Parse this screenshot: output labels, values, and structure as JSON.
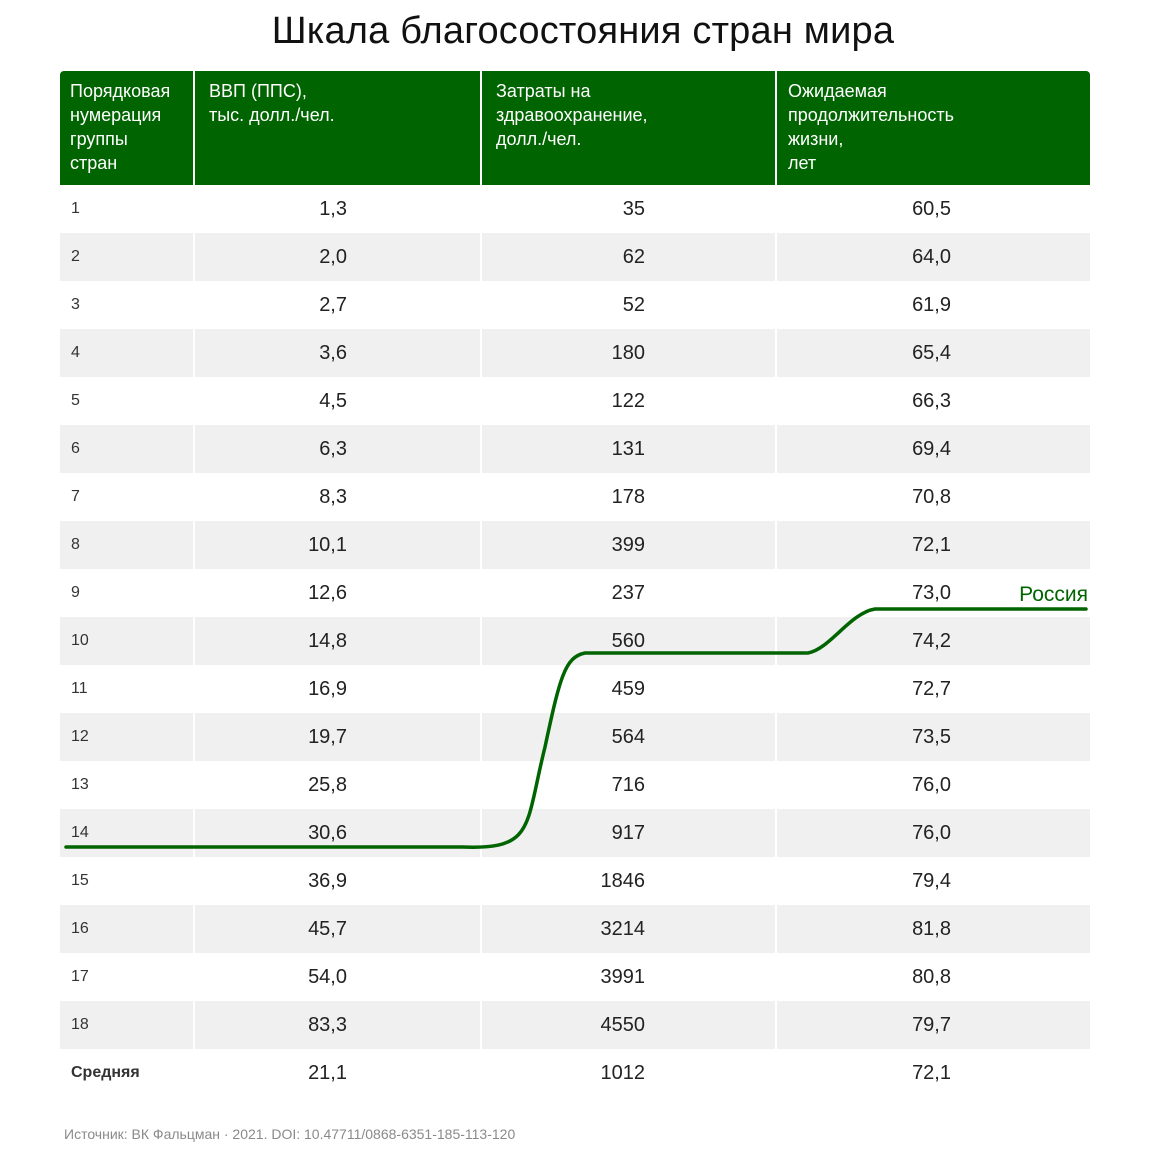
{
  "title": "Шкала благосостояния стран мира",
  "table": {
    "headers": [
      "Порядковая нумерация группы стран",
      "ВВП (ППС), тыс. долл./чел.",
      "Затраты на здравоохранение, долл./чел.",
      "Ожидаемая продолжительность жизни, лет"
    ],
    "header_lines": [
      [
        "Порядковая",
        "нумерация",
        "группы",
        "стран"
      ],
      [
        "ВВП (ППС),",
        "тыс. долл./чел."
      ],
      [
        "Затраты на",
        "здравоохранение,",
        "долл./чел."
      ],
      [
        "Ожидаемая",
        "продолжительность",
        "жизни,",
        "лет"
      ]
    ],
    "rows": [
      {
        "group": "1",
        "gdp": "1,3",
        "health": "35",
        "life": "60,5"
      },
      {
        "group": "2",
        "gdp": "2,0",
        "health": "62",
        "life": "64,0"
      },
      {
        "group": "3",
        "gdp": "2,7",
        "health": "52",
        "life": "61,9"
      },
      {
        "group": "4",
        "gdp": "3,6",
        "health": "180",
        "life": "65,4"
      },
      {
        "group": "5",
        "gdp": "4,5",
        "health": "122",
        "life": "66,3"
      },
      {
        "group": "6",
        "gdp": "6,3",
        "health": "131",
        "life": "69,4"
      },
      {
        "group": "7",
        "gdp": "8,3",
        "health": "178",
        "life": "70,8"
      },
      {
        "group": "8",
        "gdp": "10,1",
        "health": "399",
        "life": "72,1"
      },
      {
        "group": "9",
        "gdp": "12,6",
        "health": "237",
        "life": "73,0"
      },
      {
        "group": "10",
        "gdp": "14,8",
        "health": "560",
        "life": "74,2"
      },
      {
        "group": "11",
        "gdp": "16,9",
        "health": "459",
        "life": "72,7"
      },
      {
        "group": "12",
        "gdp": "19,7",
        "health": "564",
        "life": "73,5"
      },
      {
        "group": "13",
        "gdp": "25,8",
        "health": "716",
        "life": "76,0"
      },
      {
        "group": "14",
        "gdp": "30,6",
        "health": "917",
        "life": "76,0"
      },
      {
        "group": "15",
        "gdp": "36,9",
        "health": "1846",
        "life": "79,4"
      },
      {
        "group": "16",
        "gdp": "45,7",
        "health": "3214",
        "life": "81,8"
      },
      {
        "group": "17",
        "gdp": "54,0",
        "health": "3991",
        "life": "80,8"
      },
      {
        "group": "18",
        "gdp": "83,3",
        "health": "4550",
        "life": "79,7"
      }
    ],
    "average": {
      "group": "Средняя",
      "gdp": "21,1",
      "health": "1012",
      "life": "72,1"
    }
  },
  "russia_line": {
    "label": "Россия",
    "color": "#006400",
    "gdp_group": "14",
    "health_group": "10",
    "life_group": "9"
  },
  "colors": {
    "header_bg": "#006400",
    "alt_row": "#f0f0f0"
  },
  "source": "Источник: ВК Фальцман · 2021. DOI: 10.47711/0868-6351-185-113-120"
}
